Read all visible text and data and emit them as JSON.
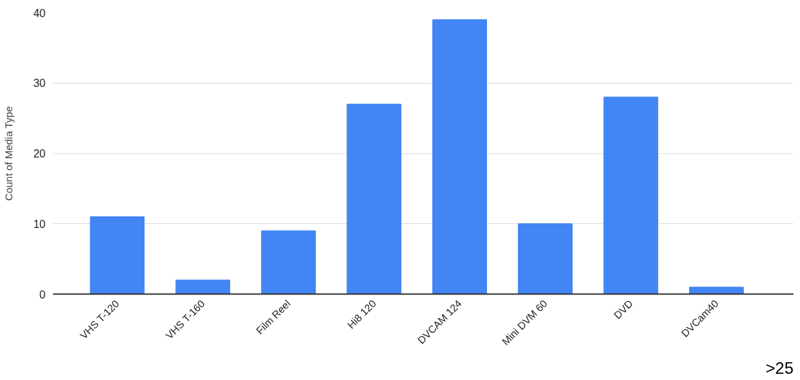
{
  "chart_data": {
    "type": "bar",
    "ylabel": "Count of Media Type",
    "categories": [
      "VHS T-120",
      "VHS T-160",
      "Film Reel",
      "Hi8 120",
      "DVCAM 124",
      "Mini DVM 60",
      "DVD",
      "DVCam40"
    ],
    "values": [
      11,
      2,
      9,
      27,
      39,
      10,
      28,
      1
    ],
    "color": "#4285f4",
    "ylim": [
      0,
      40
    ],
    "yticks": [
      0,
      10,
      20,
      30,
      40
    ],
    "grid": "y",
    "annotations": [
      ">25"
    ]
  }
}
